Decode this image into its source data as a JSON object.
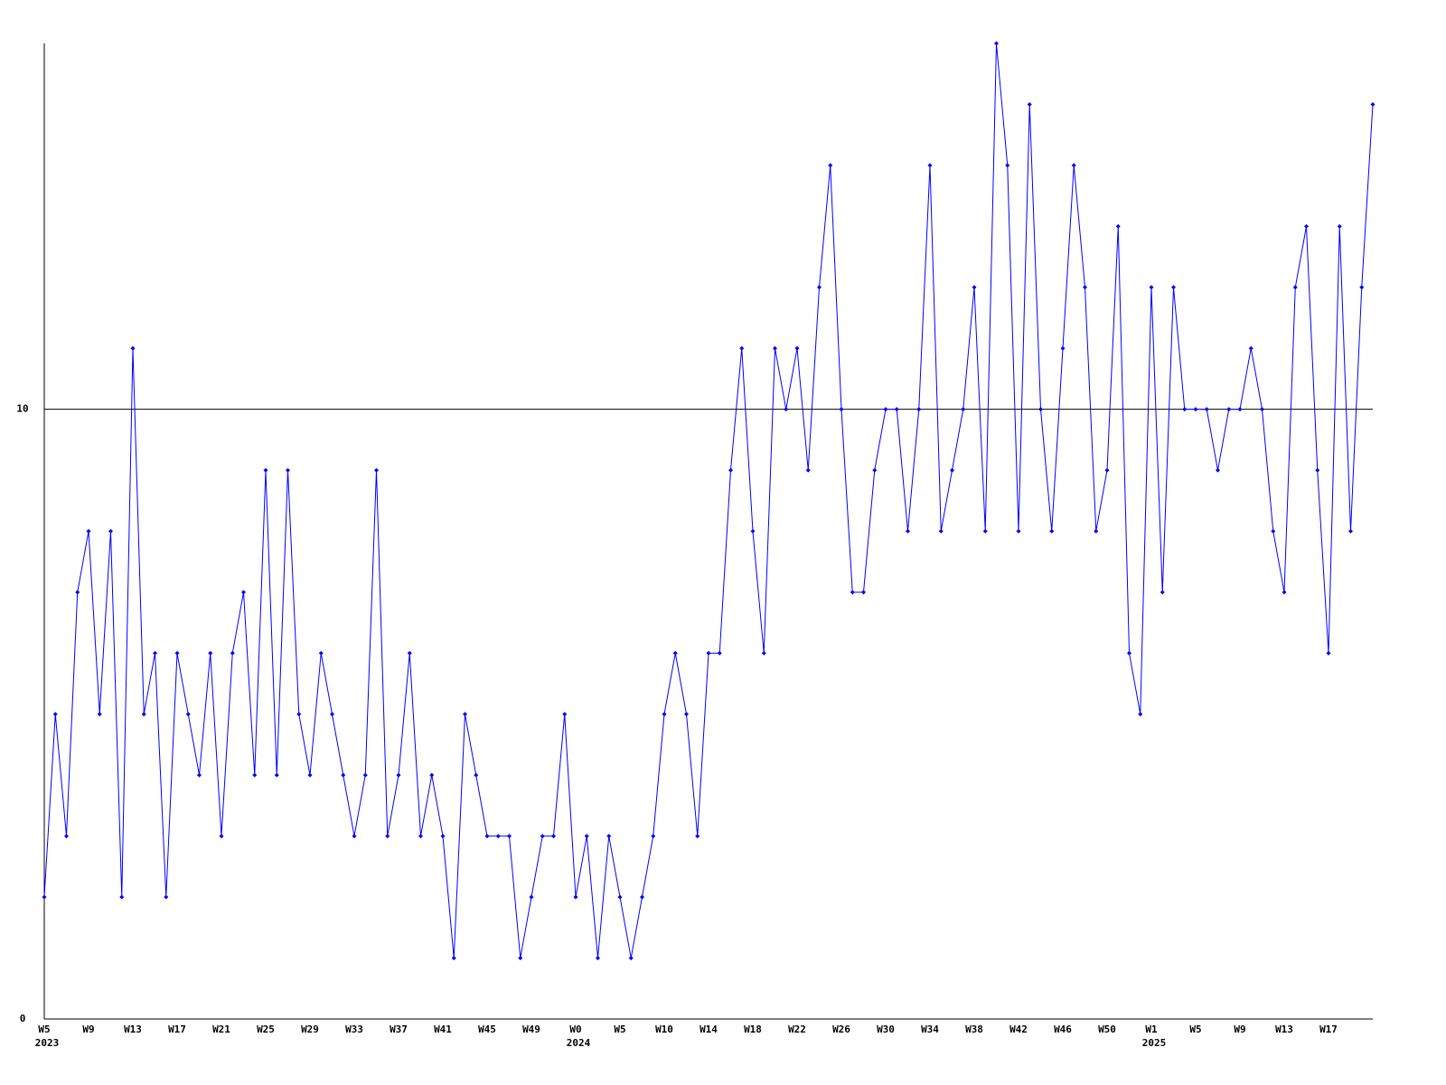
{
  "chart_data": {
    "type": "line",
    "color": "#0000ff",
    "axis_color": "#000000",
    "grid": true,
    "ylim": [
      0,
      16
    ],
    "yticks": [
      0,
      10
    ],
    "categories": [
      "W5",
      null,
      null,
      null,
      "W9",
      null,
      null,
      null,
      "W13",
      null,
      null,
      null,
      "W17",
      null,
      null,
      null,
      "W21",
      null,
      null,
      null,
      "W25",
      null,
      null,
      null,
      "W29",
      null,
      null,
      null,
      "W33",
      null,
      null,
      null,
      "W37",
      null,
      null,
      null,
      "W41",
      null,
      null,
      null,
      "W45",
      null,
      null,
      null,
      "W49",
      null,
      null,
      null,
      "W0",
      null,
      null,
      null,
      "W5",
      null,
      null,
      null,
      "W10",
      null,
      null,
      null,
      "W14",
      null,
      null,
      null,
      "W18",
      null,
      null,
      null,
      "W22",
      null,
      null,
      null,
      "W26",
      null,
      null,
      null,
      "W30",
      null,
      null,
      null,
      "W34",
      null,
      null,
      null,
      "W38",
      null,
      null,
      null,
      "W42",
      null,
      null,
      null,
      "W46",
      null,
      null,
      null,
      "W50",
      null,
      null,
      null,
      "W1",
      null,
      null,
      null,
      "W5",
      null,
      null,
      null,
      "W9",
      null,
      null,
      null,
      "W13",
      null,
      null,
      null,
      "W17",
      null,
      null,
      null,
      null
    ],
    "category_years": [
      "2023",
      null,
      null,
      null,
      null,
      null,
      null,
      null,
      null,
      null,
      null,
      null,
      null,
      null,
      null,
      null,
      null,
      null,
      null,
      null,
      null,
      null,
      null,
      null,
      null,
      null,
      null,
      null,
      null,
      null,
      null,
      null,
      null,
      null,
      null,
      null,
      null,
      null,
      null,
      null,
      null,
      null,
      null,
      null,
      null,
      null,
      null,
      null,
      "2024",
      null,
      null,
      null,
      null,
      null,
      null,
      null,
      null,
      null,
      null,
      null,
      null,
      null,
      null,
      null,
      null,
      null,
      null,
      null,
      null,
      null,
      null,
      null,
      null,
      null,
      null,
      null,
      null,
      null,
      null,
      null,
      null,
      null,
      null,
      null,
      null,
      null,
      null,
      null,
      null,
      null,
      null,
      null,
      null,
      null,
      null,
      null,
      null,
      null,
      null,
      null,
      "2025",
      null,
      null,
      null,
      null,
      null,
      null,
      null,
      null,
      null,
      null,
      null,
      null,
      null,
      null,
      null,
      null,
      null,
      null,
      null,
      null
    ],
    "values": [
      2,
      5,
      3,
      7,
      8,
      5,
      8,
      2,
      11,
      5,
      6,
      2,
      6,
      5,
      4,
      6,
      3,
      6,
      7,
      4,
      9,
      4,
      9,
      5,
      4,
      6,
      5,
      4,
      3,
      4,
      9,
      3,
      4,
      6,
      3,
      4,
      3,
      1,
      5,
      4,
      3,
      3,
      3,
      1,
      2,
      3,
      3,
      5,
      2,
      3,
      1,
      3,
      2,
      1,
      2,
      3,
      5,
      6,
      5,
      3,
      6,
      6,
      9,
      11,
      8,
      6,
      11,
      10,
      11,
      9,
      12,
      14,
      10,
      7,
      7,
      9,
      10,
      10,
      8,
      10,
      14,
      8,
      9,
      10,
      12,
      8,
      16,
      14,
      8,
      15,
      10,
      8,
      11,
      14,
      12,
      8,
      9,
      13,
      6,
      5,
      12,
      7,
      12,
      10,
      10,
      10,
      9,
      10,
      10,
      11,
      10,
      8,
      7,
      12,
      13,
      9,
      6,
      13,
      8,
      12,
      15
    ]
  }
}
